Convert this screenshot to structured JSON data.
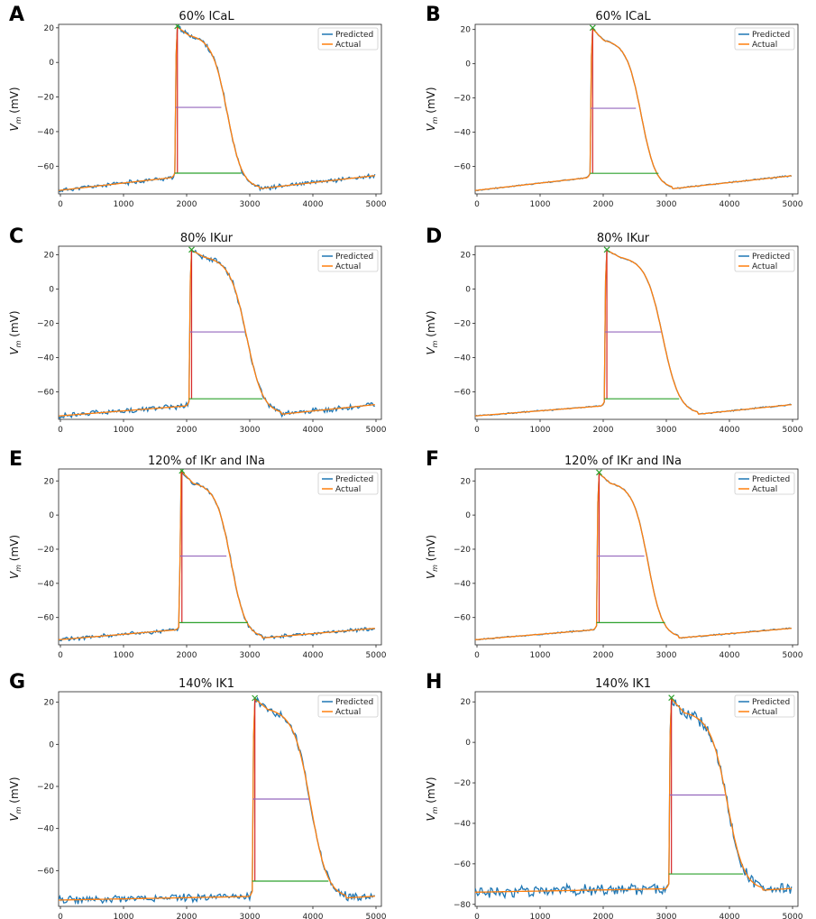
{
  "figure": {
    "ylabel_main": "V",
    "ylabel_sub": "m",
    "ylabel_unit": " (mV)"
  },
  "legend": {
    "predicted_label": "Predicted",
    "actual_label": "Actual",
    "position": "top-right"
  },
  "colors": {
    "predicted": "#1f77b4",
    "actual": "#ff7f0e",
    "upstroke": "#d62728",
    "apd50": "#9467bd",
    "apd90": "#2ca02c",
    "peak": "#2ca02c"
  },
  "chart_data": [
    {
      "letter": "A",
      "title": "60% ICaL",
      "type": "line",
      "xlim": [
        0,
        5000
      ],
      "ylim": [
        -76,
        22
      ],
      "xticks": [
        0,
        1000,
        2000,
        3000,
        4000,
        5000
      ],
      "yticks": [
        20,
        0,
        -20,
        -40,
        -60
      ],
      "start": 1800,
      "peak": 21,
      "plateau": 17,
      "repol_end": 3100,
      "apd50": {
        "v": -26,
        "x_end": 2520
      },
      "apd90": {
        "v": -64,
        "x_end": 2830
      },
      "rest_start": -74,
      "rest_end": -65,
      "noise": 1.0,
      "series": [
        "Predicted",
        "Actual"
      ]
    },
    {
      "letter": "B",
      "title": "60% ICaL",
      "type": "line",
      "xlim": [
        0,
        5000
      ],
      "ylim": [
        -76,
        23
      ],
      "xticks": [
        0,
        1000,
        2000,
        3000,
        4000,
        5000
      ],
      "yticks": [
        20,
        0,
        -20,
        -40,
        -60
      ],
      "start": 1780,
      "peak": 21,
      "plateau": 15,
      "repol_end": 3050,
      "apd50": {
        "v": -26,
        "x_end": 2490
      },
      "apd90": {
        "v": -64,
        "x_end": 2840
      },
      "rest_start": -74,
      "rest_end": -65,
      "noise": 0.3,
      "series": [
        "Predicted",
        "Actual"
      ]
    },
    {
      "letter": "C",
      "title": "80% IKur",
      "type": "line",
      "xlim": [
        0,
        5000
      ],
      "ylim": [
        -76,
        25
      ],
      "xticks": [
        0,
        1000,
        2000,
        3000,
        4000,
        5000
      ],
      "yticks": [
        20,
        0,
        -20,
        -40,
        -60
      ],
      "start": 2020,
      "peak": 23,
      "plateau": 20,
      "repol_end": 3450,
      "apd50": {
        "v": -25,
        "x_end": 2880
      },
      "apd90": {
        "v": -64,
        "x_end": 3160
      },
      "rest_start": -74,
      "rest_end": -67,
      "noise": 1.2,
      "series": [
        "Predicted",
        "Actual"
      ]
    },
    {
      "letter": "D",
      "title": "80% IKur",
      "type": "line",
      "xlim": [
        0,
        5000
      ],
      "ylim": [
        -76,
        25
      ],
      "xticks": [
        0,
        1000,
        2000,
        3000,
        4000,
        5000
      ],
      "yticks": [
        20,
        0,
        -20,
        -40,
        -60
      ],
      "start": 2000,
      "peak": 23,
      "plateau": 20,
      "repol_end": 3450,
      "apd50": {
        "v": -25,
        "x_end": 2880
      },
      "apd90": {
        "v": -64,
        "x_end": 3160
      },
      "rest_start": -74,
      "rest_end": -67,
      "noise": 0.3,
      "series": [
        "Predicted",
        "Actual"
      ]
    },
    {
      "letter": "E",
      "title": "120% of IKr and INa",
      "type": "line",
      "xlim": [
        0,
        5000
      ],
      "ylim": [
        -76,
        27
      ],
      "xticks": [
        0,
        1000,
        2000,
        3000,
        4000,
        5000
      ],
      "yticks": [
        20,
        0,
        -20,
        -40,
        -60
      ],
      "start": 1870,
      "peak": 26,
      "plateau": 20,
      "repol_end": 3150,
      "apd50": {
        "v": -24,
        "x_end": 2600
      },
      "apd90": {
        "v": -63,
        "x_end": 2930
      },
      "rest_start": -73,
      "rest_end": -66,
      "noise": 0.9,
      "series": [
        "Predicted",
        "Actual"
      ]
    },
    {
      "letter": "F",
      "title": "120% of IKr and INa",
      "type": "line",
      "xlim": [
        0,
        5000
      ],
      "ylim": [
        -76,
        27
      ],
      "xticks": [
        0,
        1000,
        2000,
        3000,
        4000,
        5000
      ],
      "yticks": [
        20,
        0,
        -20,
        -40,
        -60
      ],
      "start": 1880,
      "peak": 25,
      "plateau": 20,
      "repol_end": 3150,
      "apd50": {
        "v": -24,
        "x_end": 2620
      },
      "apd90": {
        "v": -63,
        "x_end": 2940
      },
      "rest_start": -73,
      "rest_end": -66,
      "noise": 0.3,
      "series": [
        "Predicted",
        "Actual"
      ]
    },
    {
      "letter": "G",
      "title": "140% IK1",
      "type": "line",
      "xlim": [
        0,
        5000
      ],
      "ylim": [
        -77,
        25
      ],
      "xticks": [
        0,
        1000,
        2000,
        3000,
        4000,
        5000
      ],
      "yticks": [
        20,
        0,
        -20,
        -40,
        -60
      ],
      "start": 3000,
      "peak": 22,
      "plateau": 18,
      "repol_end": 4450,
      "apd50": {
        "v": -26,
        "x_end": 3880
      },
      "apd90": {
        "v": -65,
        "x_end": 4180
      },
      "rest_start": -74,
      "rest_end": -72,
      "noise": 1.5,
      "series": [
        "Predicted",
        "Actual"
      ]
    },
    {
      "letter": "H",
      "title": "140% IK1",
      "type": "line",
      "xlim": [
        0,
        5000
      ],
      "ylim": [
        -81,
        25
      ],
      "xticks": [
        0,
        1000,
        2000,
        3000,
        4000,
        5000
      ],
      "yticks": [
        20,
        0,
        -20,
        -40,
        -60,
        -80
      ],
      "start": 3000,
      "peak": 22,
      "plateau": 16,
      "repol_end": 4450,
      "apd50": {
        "v": -26,
        "x_end": 3870
      },
      "apd90": {
        "v": -65,
        "x_end": 4150
      },
      "rest_start": -74,
      "rest_end": -72,
      "noise": 2.2,
      "series": [
        "Predicted",
        "Actual"
      ]
    }
  ]
}
